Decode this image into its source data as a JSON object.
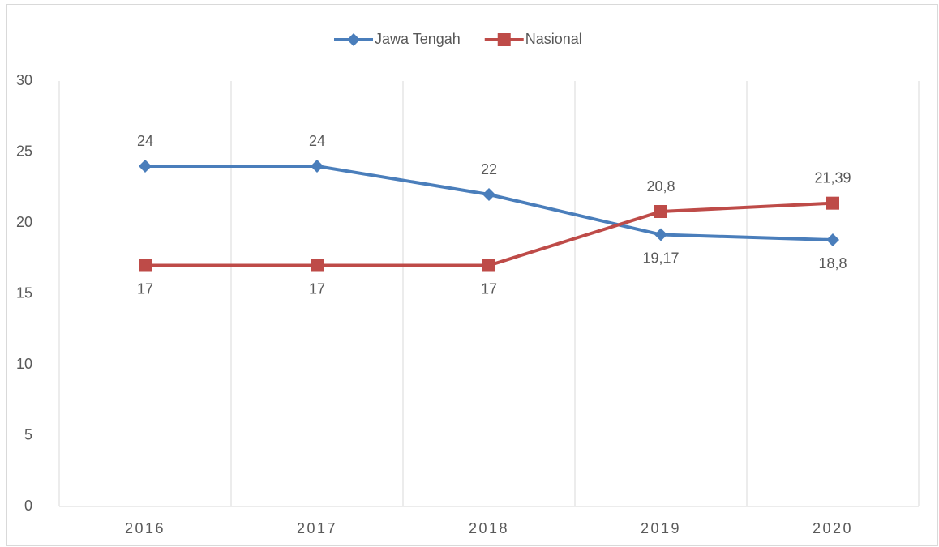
{
  "chart_data": {
    "type": "line",
    "categories": [
      "2016",
      "2017",
      "2018",
      "2019",
      "2020"
    ],
    "series": [
      {
        "name": "Jawa Tengah",
        "color": "#4a7ebb",
        "marker": "diamond",
        "values": [
          24,
          24,
          22,
          19.17,
          18.8
        ],
        "value_labels": [
          "24",
          "24",
          "22",
          "19,17",
          "18,8"
        ]
      },
      {
        "name": "Nasional",
        "color": "#be4b48",
        "marker": "square",
        "values": [
          17,
          17,
          17,
          20.8,
          21.39
        ],
        "value_labels": [
          "17",
          "17",
          "17",
          "20,8",
          "21,39"
        ]
      }
    ],
    "ylim": [
      0,
      30
    ],
    "yticks": [
      0,
      5,
      10,
      15,
      20,
      25,
      30
    ],
    "legend": "top"
  }
}
